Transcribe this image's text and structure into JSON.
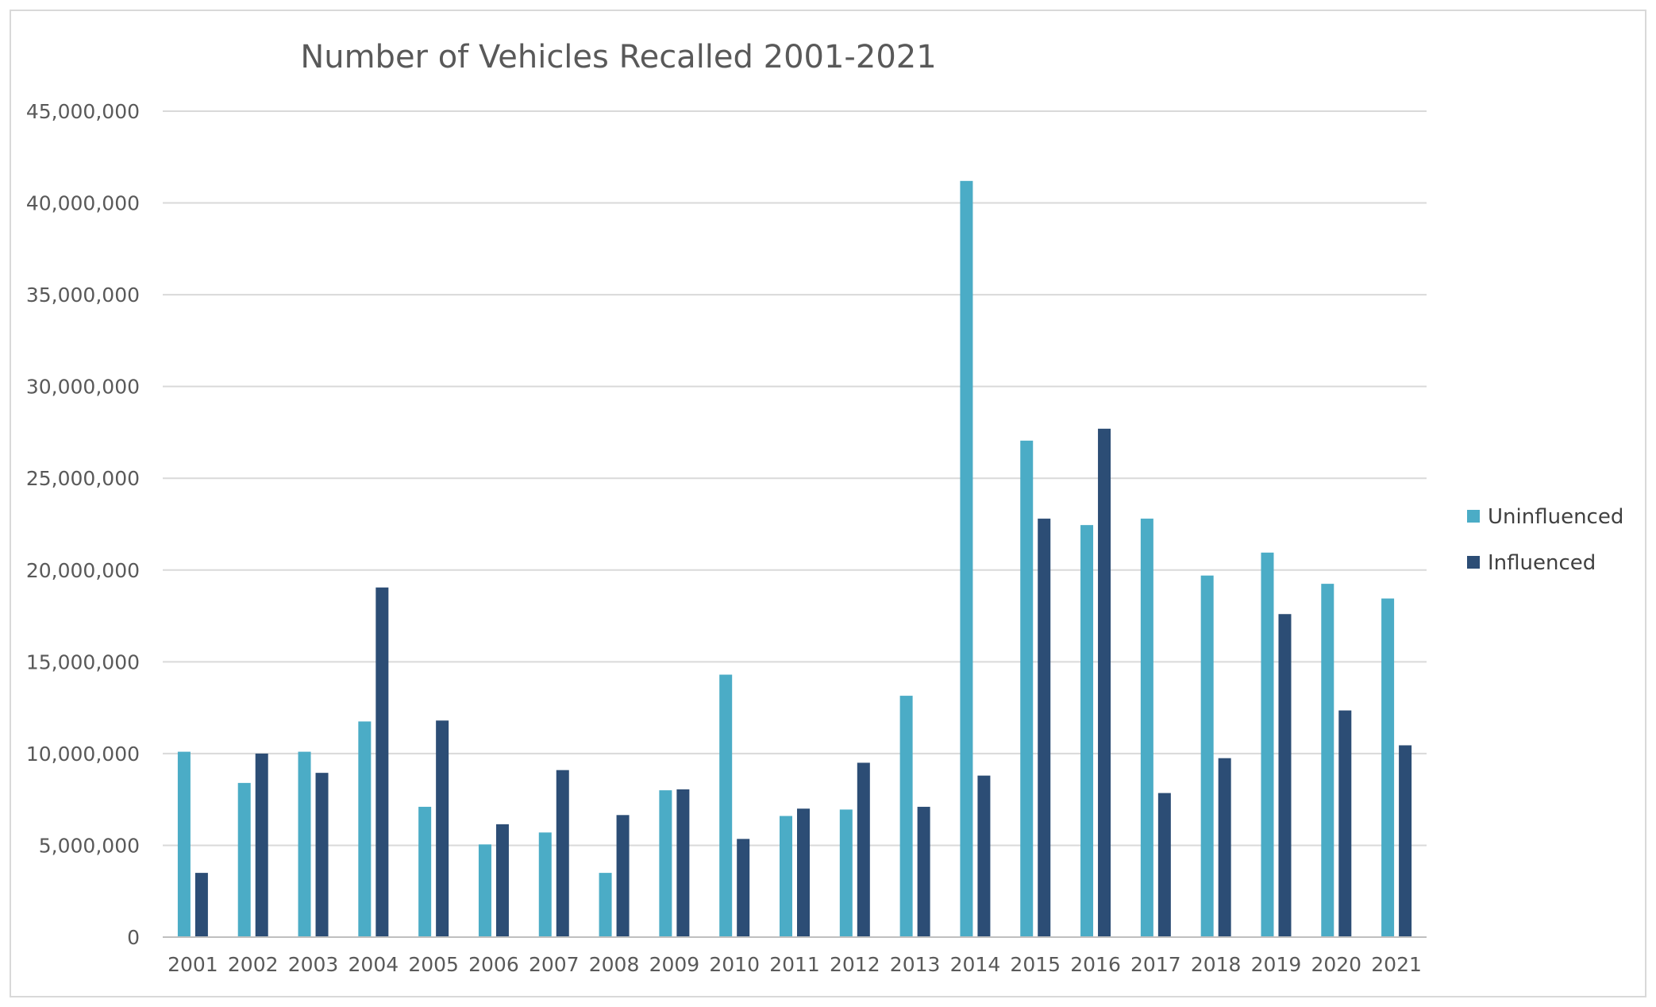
{
  "chart_data": {
    "type": "bar",
    "title": "Number of Vehicles Recalled 2001-2021",
    "xlabel": "",
    "ylabel": "",
    "categories": [
      "2001",
      "2002",
      "2003",
      "2004",
      "2005",
      "2006",
      "2007",
      "2008",
      "2009",
      "2010",
      "2011",
      "2012",
      "2013",
      "2014",
      "2015",
      "2016",
      "2017",
      "2018",
      "2019",
      "2020",
      "2021"
    ],
    "series": [
      {
        "name": "Uninfluenced",
        "color": "#4bacc6",
        "values": [
          10100000,
          8400000,
          10100000,
          11750000,
          7100000,
          5050000,
          5700000,
          3500000,
          8000000,
          14300000,
          6600000,
          6950000,
          13150000,
          41200000,
          27050000,
          22450000,
          22800000,
          19700000,
          20950000,
          19250000,
          18450000
        ]
      },
      {
        "name": "Influenced",
        "color": "#2c4d75",
        "values": [
          3500000,
          10000000,
          8950000,
          19050000,
          11800000,
          6150000,
          9100000,
          6650000,
          8050000,
          5350000,
          7000000,
          9500000,
          7100000,
          8800000,
          22800000,
          27700000,
          7850000,
          9750000,
          17600000,
          12350000,
          10450000
        ]
      }
    ],
    "ylim": [
      0,
      45000000
    ],
    "yticks": [
      0,
      5000000,
      10000000,
      15000000,
      20000000,
      25000000,
      30000000,
      35000000,
      40000000,
      45000000
    ],
    "ytick_labels": [
      "0",
      "5,000,000",
      "10,000,000",
      "15,000,000",
      "20,000,000",
      "25,000,000",
      "30,000,000",
      "35,000,000",
      "40,000,000",
      "45,000,000"
    ],
    "grid": true,
    "legend_position": "right"
  }
}
